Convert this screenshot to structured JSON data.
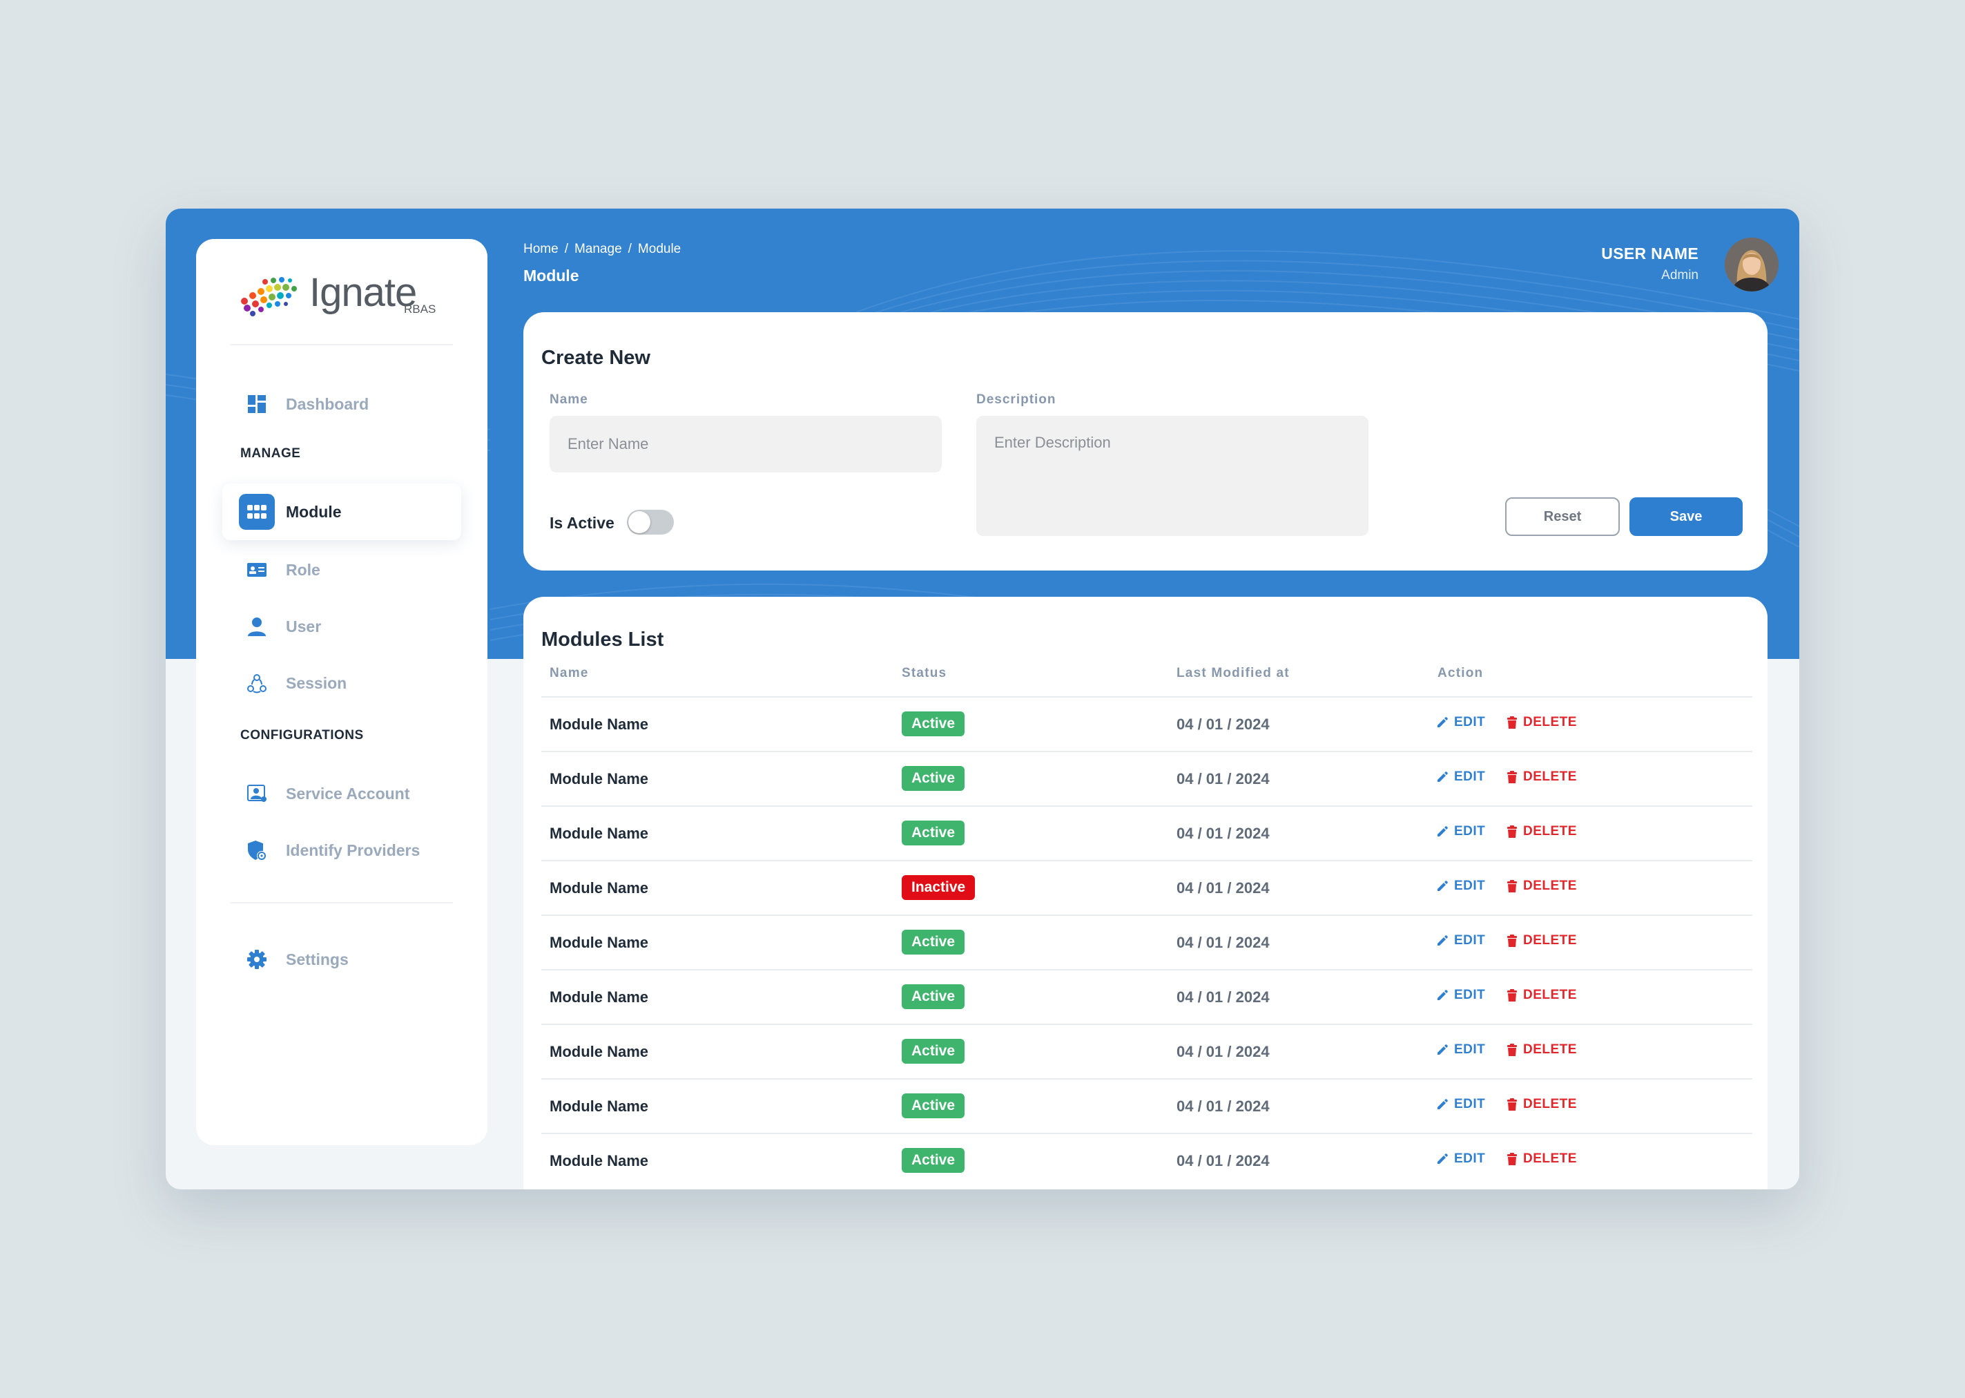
{
  "app": {
    "logo_text": "Ignate",
    "logo_sub": "RBAS"
  },
  "sidebar": {
    "items_top": [
      {
        "label": "Dashboard",
        "icon": "dashboard-icon"
      }
    ],
    "manage_title": "MANAGE",
    "manage_items": [
      {
        "label": "Module",
        "icon": "grid-icon",
        "active": true
      },
      {
        "label": "Role",
        "icon": "id-card-icon"
      },
      {
        "label": "User",
        "icon": "user-icon"
      },
      {
        "label": "Session",
        "icon": "session-icon"
      }
    ],
    "config_title": "CONFIGURATIONS",
    "config_items": [
      {
        "label": "Service Account",
        "icon": "service-account-icon"
      },
      {
        "label": "Identify Providers",
        "icon": "shield-icon"
      }
    ],
    "bottom_items": [
      {
        "label": "Settings",
        "icon": "gear-icon"
      }
    ]
  },
  "header": {
    "breadcrumb": [
      "Home",
      "Manage",
      "Module"
    ],
    "title": "Module",
    "user_name": "USER NAME",
    "user_role": "Admin"
  },
  "create": {
    "title": "Create New",
    "name_label": "Name",
    "name_placeholder": "Enter Name",
    "name_value": "",
    "desc_label": "Description",
    "desc_placeholder": "Enter Description",
    "desc_value": "",
    "active_label": "Is Active",
    "active_on": false,
    "reset_label": "Reset",
    "save_label": "Save"
  },
  "list": {
    "title": "Modules List",
    "columns": [
      "Name",
      "Status",
      "Last Modified at",
      "Action"
    ],
    "edit_label": "EDIT",
    "delete_label": "DELETE",
    "status_colors": {
      "Active": "#3fb46d",
      "Inactive": "#e10d16"
    },
    "rows": [
      {
        "name": "Module Name",
        "status": "Active",
        "date": "04 / 01 / 2024"
      },
      {
        "name": "Module Name",
        "status": "Active",
        "date": "04 / 01 / 2024"
      },
      {
        "name": "Module Name",
        "status": "Active",
        "date": "04 / 01 / 2024"
      },
      {
        "name": "Module Name",
        "status": "Inactive",
        "date": "04 / 01 / 2024"
      },
      {
        "name": "Module Name",
        "status": "Active",
        "date": "04 / 01 / 2024"
      },
      {
        "name": "Module Name",
        "status": "Active",
        "date": "04 / 01 / 2024"
      },
      {
        "name": "Module Name",
        "status": "Active",
        "date": "04 / 01 / 2024"
      },
      {
        "name": "Module Name",
        "status": "Active",
        "date": "04 / 01 / 2024"
      },
      {
        "name": "Module Name",
        "status": "Active",
        "date": "04 / 01 / 2024"
      }
    ]
  },
  "colors": {
    "brand": "#3282d0",
    "accent": "#2f7fd0",
    "danger": "#e0262b"
  }
}
